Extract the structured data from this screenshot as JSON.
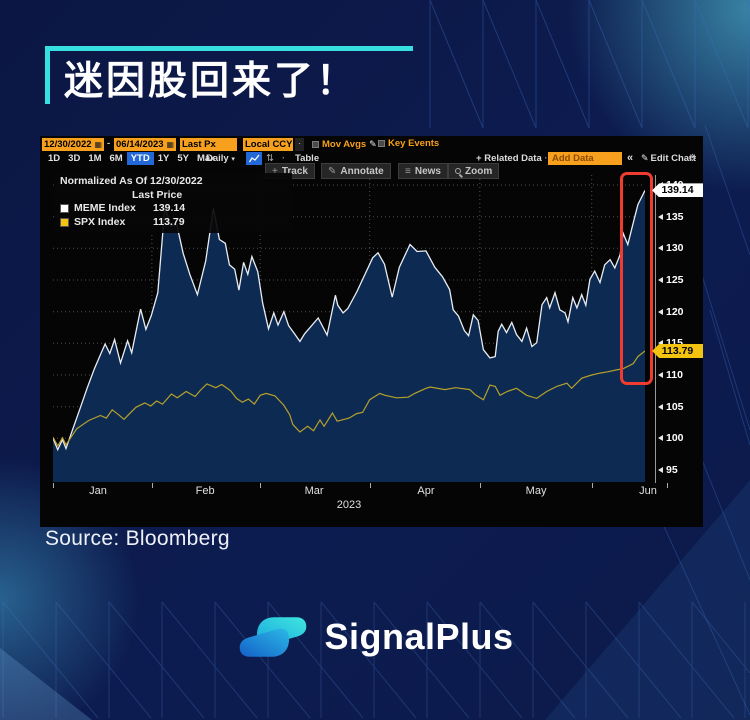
{
  "title": "迷因股回来了！",
  "source_line": "Source: Bloomberg",
  "brand_name": "SignalPlus",
  "colors": {
    "accent_cyan": "#38dfe0",
    "bloomberg_orange": "#f7a01d",
    "bloomberg_blue": "#2268d8",
    "meme_line": "#e9edf2",
    "meme_fill": "#0d2b52",
    "spx_line": "#b5a02b",
    "tag_yellow": "#f2c30f",
    "highlight_red": "#ef3b30"
  },
  "terminal": {
    "icons": {
      "calendar": "▦",
      "dropdown": "▾",
      "pencil": "✎",
      "gear": "⚙",
      "collapse": "«",
      "sort": "⇅",
      "dot": "·",
      "plus": "+",
      "news_lines": "≡"
    },
    "row1": {
      "date_from": "12/30/2022",
      "dash": "-",
      "date_to": "06/14/2023",
      "price_field": "Last Px",
      "currency": "Local CCY",
      "mov_avgs": "Mov Avgs",
      "key_events": "Key Events"
    },
    "row2": {
      "ranges": [
        "1D",
        "3D",
        "1M",
        "6M",
        "YTD",
        "1Y",
        "5Y",
        "Max"
      ],
      "active_range": "YTD",
      "frequency": "Daily",
      "table_label": "Table",
      "related_data": "Related Data",
      "add_data_placeholder": "Add Data",
      "edit_chart": "Edit Chart"
    },
    "row3": {
      "track": "Track",
      "annotate": "Annotate",
      "news": "News",
      "zoom": "Zoom"
    },
    "legend": {
      "line1": "Normalized As Of 12/30/2022",
      "line2": "Last Price",
      "items": [
        {
          "name": "MEME Index",
          "value": "139.14",
          "swatch": "#ffffff"
        },
        {
          "name": "SPX Index",
          "value": "113.79",
          "swatch": "#f2c30f"
        }
      ]
    },
    "price_tags": [
      {
        "text": "139.14",
        "value": 139.14,
        "bg": "#ffffff"
      },
      {
        "text": "113.79",
        "value": 113.79,
        "bg": "#f2c30f"
      }
    ]
  },
  "chart_data": {
    "type": "line",
    "title": "MEME Index vs SPX Index, normalized to 100 as of 12/30/2022",
    "x_range": [
      "12/30/2022",
      "06/14/2023"
    ],
    "y_min": 95,
    "y_max": 140,
    "y_ticks": [
      95,
      100,
      105,
      110,
      115,
      120,
      125,
      130,
      135,
      140
    ],
    "x_labels": [
      "Jan",
      "Feb",
      "Mar",
      "Apr",
      "May",
      "Jun"
    ],
    "x_label_pos": [
      0.076,
      0.257,
      0.441,
      0.63,
      0.816,
      1.005
    ],
    "month_boundaries": [
      0.167,
      0.35,
      0.535,
      0.721,
      0.91
    ],
    "x_tick_pos": [
      0,
      0.167,
      0.35,
      0.535,
      0.721,
      0.91,
      1.038
    ],
    "year_label": "2023",
    "grid": "dotted",
    "legend_position": "top-left",
    "series": [
      {
        "name": "MEME Index",
        "color": "#e9edf2",
        "fill": "#0d2b52",
        "last": 139.14,
        "points": [
          [
            0,
            100
          ],
          [
            0.008,
            98.2
          ],
          [
            0.016,
            99.8
          ],
          [
            0.022,
            98.4
          ],
          [
            0.034,
            101.6
          ],
          [
            0.045,
            104.5
          ],
          [
            0.058,
            108
          ],
          [
            0.07,
            111
          ],
          [
            0.08,
            113.2
          ],
          [
            0.088,
            114.9
          ],
          [
            0.096,
            113.4
          ],
          [
            0.104,
            115.6
          ],
          [
            0.114,
            111.9
          ],
          [
            0.126,
            115.4
          ],
          [
            0.133,
            113.5
          ],
          [
            0.148,
            120.4
          ],
          [
            0.157,
            117.2
          ],
          [
            0.166,
            119.4
          ],
          [
            0.177,
            123
          ],
          [
            0.189,
            136.5
          ],
          [
            0.199,
            133.5
          ],
          [
            0.209,
            133.8
          ],
          [
            0.22,
            129.2
          ],
          [
            0.231,
            125.9
          ],
          [
            0.244,
            122.7
          ],
          [
            0.258,
            128
          ],
          [
            0.271,
            136.3
          ],
          [
            0.281,
            131.4
          ],
          [
            0.291,
            130.8
          ],
          [
            0.298,
            127.4
          ],
          [
            0.307,
            126.7
          ],
          [
            0.314,
            123.4
          ],
          [
            0.322,
            127.8
          ],
          [
            0.329,
            125.9
          ],
          [
            0.336,
            128.7
          ],
          [
            0.346,
            126.3
          ],
          [
            0.354,
            121.4
          ],
          [
            0.364,
            117.3
          ],
          [
            0.373,
            119.8
          ],
          [
            0.38,
            117.9
          ],
          [
            0.39,
            120
          ],
          [
            0.398,
            117.8
          ],
          [
            0.408,
            116.5
          ],
          [
            0.417,
            115.3
          ],
          [
            0.425,
            116.5
          ],
          [
            0.448,
            119
          ],
          [
            0.463,
            116.3
          ],
          [
            0.477,
            122.6
          ],
          [
            0.481,
            121
          ],
          [
            0.49,
            119.8
          ],
          [
            0.498,
            120.5
          ],
          [
            0.513,
            123.1
          ],
          [
            0.524,
            125.3
          ],
          [
            0.54,
            128.5
          ],
          [
            0.549,
            129.3
          ],
          [
            0.56,
            127.5
          ],
          [
            0.573,
            122.3
          ],
          [
            0.585,
            127
          ],
          [
            0.603,
            130.6
          ],
          [
            0.615,
            129.5
          ],
          [
            0.63,
            129.6
          ],
          [
            0.645,
            127
          ],
          [
            0.658,
            125.5
          ],
          [
            0.67,
            123.5
          ],
          [
            0.676,
            120.3
          ],
          [
            0.685,
            119.3
          ],
          [
            0.695,
            117
          ],
          [
            0.702,
            116.2
          ],
          [
            0.71,
            119.5
          ],
          [
            0.718,
            118.6
          ],
          [
            0.727,
            114
          ],
          [
            0.738,
            112.7
          ],
          [
            0.747,
            112.9
          ],
          [
            0.752,
            116.9
          ],
          [
            0.758,
            118
          ],
          [
            0.766,
            116.7
          ],
          [
            0.775,
            118.3
          ],
          [
            0.783,
            116.4
          ],
          [
            0.792,
            115.3
          ],
          [
            0.8,
            117.4
          ],
          [
            0.809,
            114.5
          ],
          [
            0.817,
            115.1
          ],
          [
            0.826,
            121.1
          ],
          [
            0.834,
            122.2
          ],
          [
            0.839,
            120.6
          ],
          [
            0.848,
            123
          ],
          [
            0.856,
            120.3
          ],
          [
            0.865,
            119.8
          ],
          [
            0.87,
            118.4
          ],
          [
            0.878,
            122.2
          ],
          [
            0.885,
            120.6
          ],
          [
            0.893,
            122.7
          ],
          [
            0.9,
            121
          ],
          [
            0.907,
            125.1
          ],
          [
            0.915,
            126.4
          ],
          [
            0.924,
            124.6
          ],
          [
            0.932,
            127.4
          ],
          [
            0.941,
            128.2
          ],
          [
            0.949,
            126.9
          ],
          [
            0.958,
            129
          ],
          [
            0.963,
            132.4
          ],
          [
            0.971,
            130.6
          ],
          [
            0.98,
            134
          ],
          [
            0.988,
            136.9
          ],
          [
            1,
            139.14
          ]
        ]
      },
      {
        "name": "SPX Index",
        "color": "#b5a02b",
        "last": 113.79,
        "points": [
          [
            0,
            100.2
          ],
          [
            0.008,
            98.8
          ],
          [
            0.016,
            100.1
          ],
          [
            0.022,
            99
          ],
          [
            0.04,
            101.5
          ],
          [
            0.06,
            102.8
          ],
          [
            0.08,
            103.6
          ],
          [
            0.09,
            103.2
          ],
          [
            0.1,
            104.5
          ],
          [
            0.11,
            103.8
          ],
          [
            0.12,
            103
          ],
          [
            0.14,
            104.9
          ],
          [
            0.155,
            105.6
          ],
          [
            0.165,
            105.1
          ],
          [
            0.175,
            105.9
          ],
          [
            0.185,
            105.4
          ],
          [
            0.2,
            107
          ],
          [
            0.21,
            106.4
          ],
          [
            0.225,
            107.4
          ],
          [
            0.24,
            106.6
          ],
          [
            0.25,
            107.7
          ],
          [
            0.26,
            108.6
          ],
          [
            0.275,
            108
          ],
          [
            0.285,
            108.5
          ],
          [
            0.3,
            107.5
          ],
          [
            0.31,
            106.3
          ],
          [
            0.32,
            105.7
          ],
          [
            0.33,
            106.2
          ],
          [
            0.34,
            105.4
          ],
          [
            0.35,
            106.8
          ],
          [
            0.36,
            107.1
          ],
          [
            0.375,
            106.7
          ],
          [
            0.39,
            105.2
          ],
          [
            0.4,
            103.7
          ],
          [
            0.405,
            102.2
          ],
          [
            0.412,
            101.5
          ],
          [
            0.417,
            101
          ],
          [
            0.43,
            101.9
          ],
          [
            0.44,
            101.2
          ],
          [
            0.451,
            102.9
          ],
          [
            0.458,
            101.9
          ],
          [
            0.472,
            104
          ],
          [
            0.48,
            102.7
          ],
          [
            0.5,
            103.2
          ],
          [
            0.513,
            103.9
          ],
          [
            0.523,
            104.1
          ],
          [
            0.535,
            106.1
          ],
          [
            0.552,
            107.1
          ],
          [
            0.561,
            106.8
          ],
          [
            0.58,
            106.4
          ],
          [
            0.6,
            106.5
          ],
          [
            0.611,
            107.1
          ],
          [
            0.63,
            107.9
          ],
          [
            0.637,
            108.1
          ],
          [
            0.662,
            107.7
          ],
          [
            0.68,
            108
          ],
          [
            0.704,
            107.7
          ],
          [
            0.713,
            106.9
          ],
          [
            0.727,
            106.1
          ],
          [
            0.738,
            108.4
          ],
          [
            0.747,
            108.2
          ],
          [
            0.755,
            106.8
          ],
          [
            0.767,
            107.4
          ],
          [
            0.783,
            107.9
          ],
          [
            0.8,
            106.8
          ],
          [
            0.817,
            106.3
          ],
          [
            0.834,
            107.4
          ],
          [
            0.851,
            108.2
          ],
          [
            0.868,
            108.7
          ],
          [
            0.876,
            107.9
          ],
          [
            0.893,
            109.5
          ],
          [
            0.91,
            110
          ],
          [
            0.924,
            110.3
          ],
          [
            0.937,
            110.5
          ],
          [
            0.952,
            110.8
          ],
          [
            0.963,
            111
          ],
          [
            0.98,
            111.8
          ],
          [
            0.988,
            112.9
          ],
          [
            1,
            113.79
          ]
        ]
      }
    ]
  }
}
